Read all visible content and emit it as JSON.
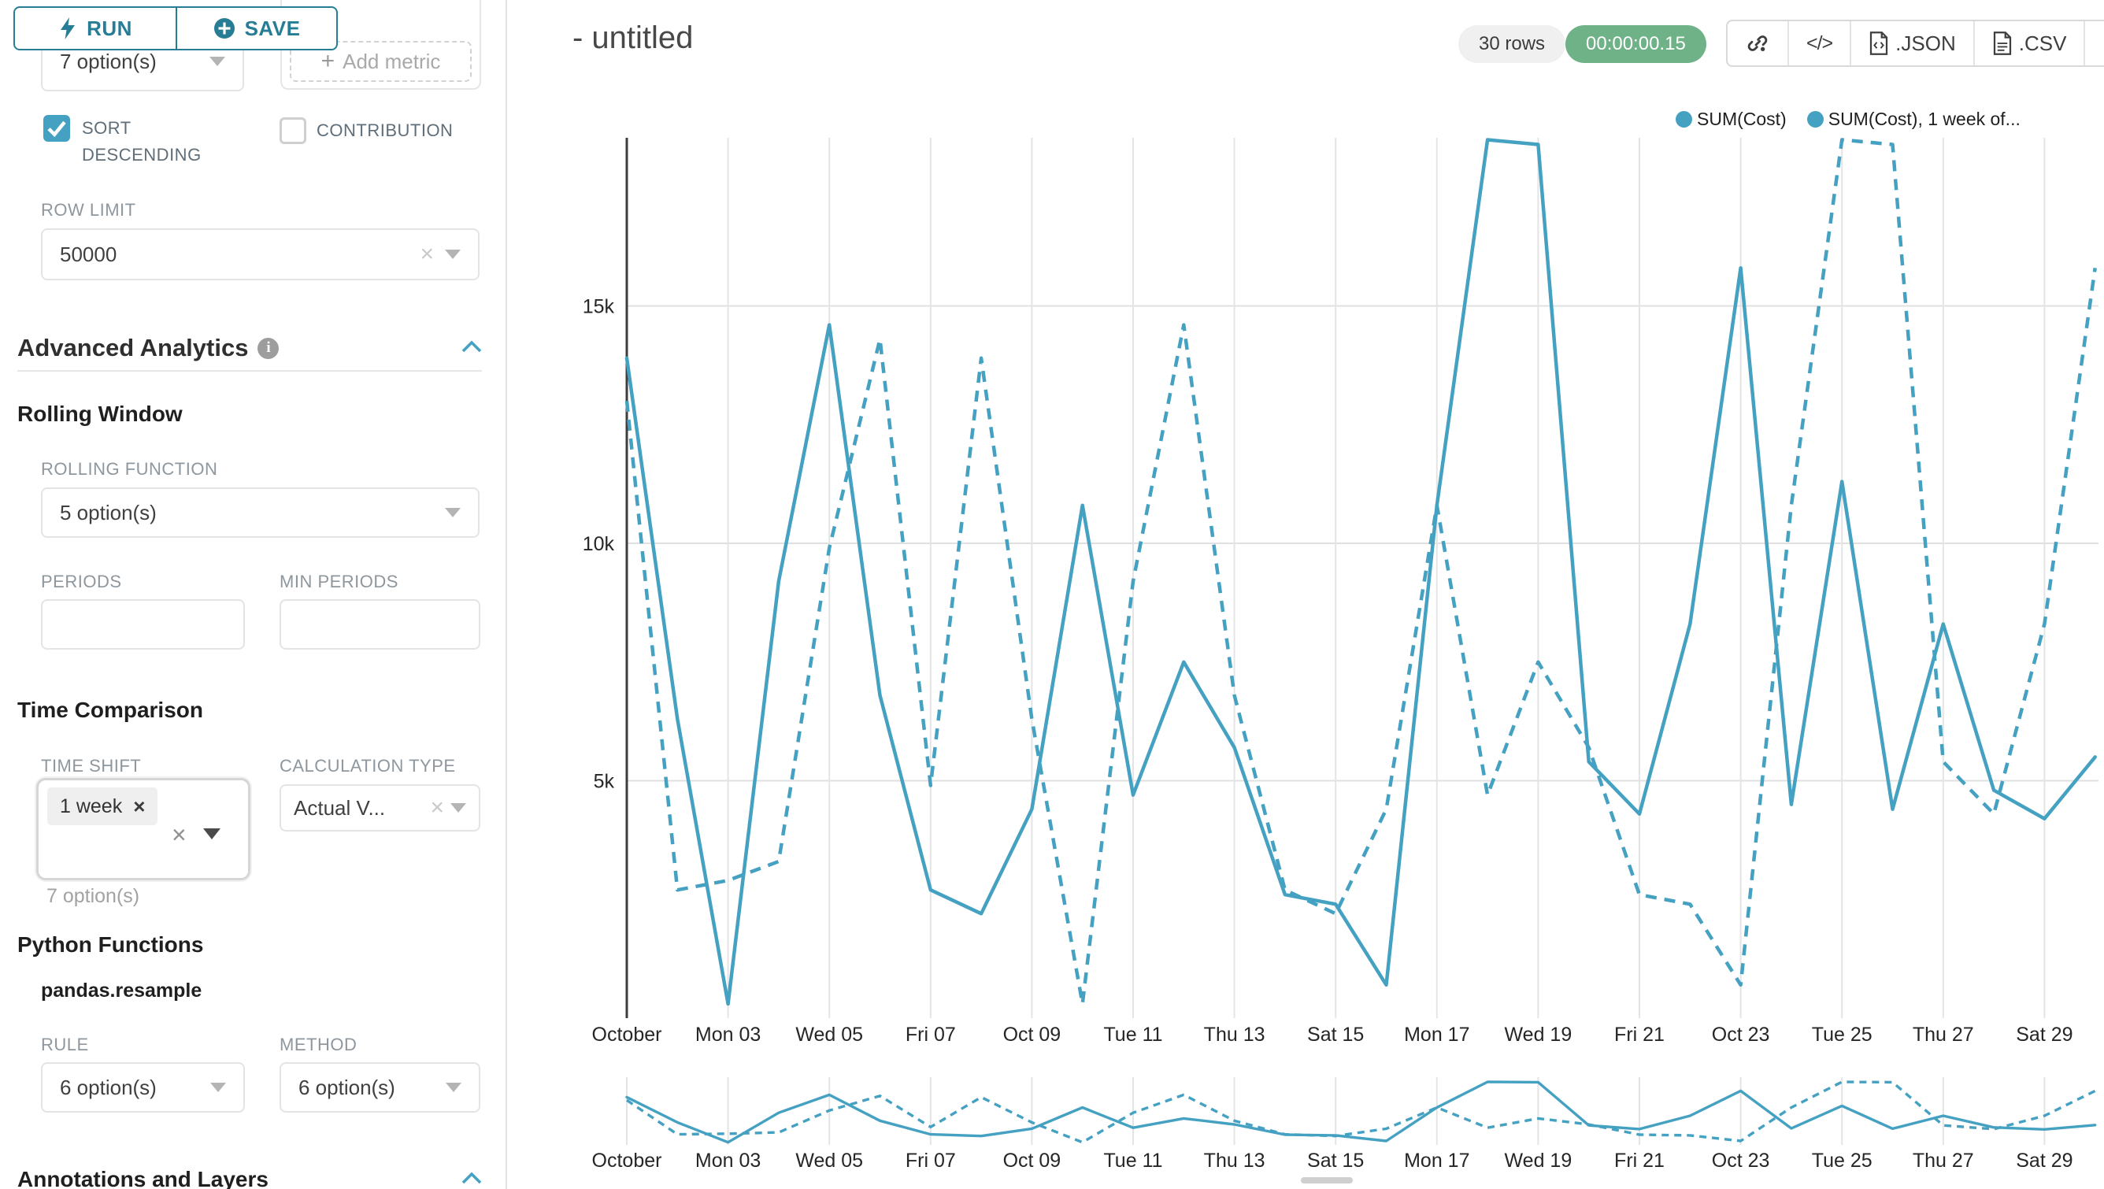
{
  "sidebar": {
    "run_label": "RUN",
    "save_label": "SAVE",
    "groupby_select_value": "7 option(s)",
    "add_metric_label": "Add metric",
    "sort_descending_label": "SORT DESCENDING",
    "contribution_label": "CONTRIBUTION",
    "row_limit_label": "ROW LIMIT",
    "row_limit_value": "50000",
    "advanced_analytics_title": "Advanced Analytics",
    "rolling_window_title": "Rolling Window",
    "rolling_function_label": "ROLLING FUNCTION",
    "rolling_function_value": "5 option(s)",
    "periods_label": "PERIODS",
    "min_periods_label": "MIN PERIODS",
    "time_comparison_title": "Time Comparison",
    "time_shift_label": "TIME SHIFT",
    "time_shift_tag": "1 week",
    "time_shift_helper": "7 option(s)",
    "calculation_type_label": "CALCULATION TYPE",
    "calculation_type_value": "Actual V...",
    "python_functions_title": "Python Functions",
    "resample_label": "pandas.resample",
    "rule_label": "RULE",
    "rule_value": "6 option(s)",
    "method_label": "METHOD",
    "method_value": "6 option(s)",
    "annotations_title": "Annotations and Layers"
  },
  "header": {
    "title": "- untitled",
    "rows_badge": "30 rows",
    "timer_badge": "00:00:00.15",
    "export_json_label": ".JSON",
    "export_csv_label": ".CSV"
  },
  "legend": [
    {
      "label": "SUM(Cost)"
    },
    {
      "label": "SUM(Cost), 1 week of..."
    }
  ],
  "icons": {
    "code": "</>",
    "add": "+",
    "clear": "×",
    "info": "i"
  },
  "colors": {
    "series": "#45a1c2",
    "button_teal": "#267d95",
    "timer_green": "#6FB287",
    "grid": "#e4e4e4",
    "axis": "#3d3d3d"
  },
  "chart_data": {
    "type": "line",
    "title": "- untitled",
    "xlabel": "",
    "ylabel": "",
    "legend_position": "top-right",
    "grid": true,
    "ylim": [
      0,
      18600
    ],
    "x_unit": "day of October",
    "start_day": 1,
    "x_ticks": [
      {
        "day": 1,
        "label": "October"
      },
      {
        "day": 3,
        "label": "Mon 03"
      },
      {
        "day": 5,
        "label": "Wed 05"
      },
      {
        "day": 7,
        "label": "Fri 07"
      },
      {
        "day": 9,
        "label": "Oct 09"
      },
      {
        "day": 11,
        "label": "Tue 11"
      },
      {
        "day": 13,
        "label": "Thu 13"
      },
      {
        "day": 15,
        "label": "Sat 15"
      },
      {
        "day": 17,
        "label": "Mon 17"
      },
      {
        "day": 19,
        "label": "Wed 19"
      },
      {
        "day": 21,
        "label": "Fri 21"
      },
      {
        "day": 23,
        "label": "Oct 23"
      },
      {
        "day": 25,
        "label": "Tue 25"
      },
      {
        "day": 27,
        "label": "Thu 27"
      },
      {
        "day": 29,
        "label": "Sat 29"
      }
    ],
    "y_ticks": [
      {
        "value": 5000,
        "label": "5k"
      },
      {
        "value": 10000,
        "label": "10k"
      },
      {
        "value": 15000,
        "label": "15k"
      }
    ],
    "series": [
      {
        "name": "SUM(Cost)",
        "line_style": "solid",
        "values": [
          13900,
          6300,
          300,
          9200,
          14600,
          6800,
          2700,
          2200,
          4400,
          10800,
          4700,
          7500,
          5700,
          2600,
          2400,
          700,
          10800,
          18500,
          18400,
          5400,
          4300,
          8300,
          15800,
          4500,
          11300,
          4400,
          8300,
          4800,
          4200,
          5500
        ]
      },
      {
        "name": "SUM(Cost), 1 week offset",
        "line_style": "dashed",
        "values": [
          13000,
          2700,
          2900,
          3300,
          9900,
          14300,
          4900,
          13900,
          6300,
          300,
          9200,
          14600,
          6800,
          2700,
          2200,
          4400,
          10800,
          4700,
          7500,
          5700,
          2600,
          2400,
          700,
          10800,
          18500,
          18400,
          5400,
          4300,
          8300,
          15800
        ]
      }
    ]
  }
}
